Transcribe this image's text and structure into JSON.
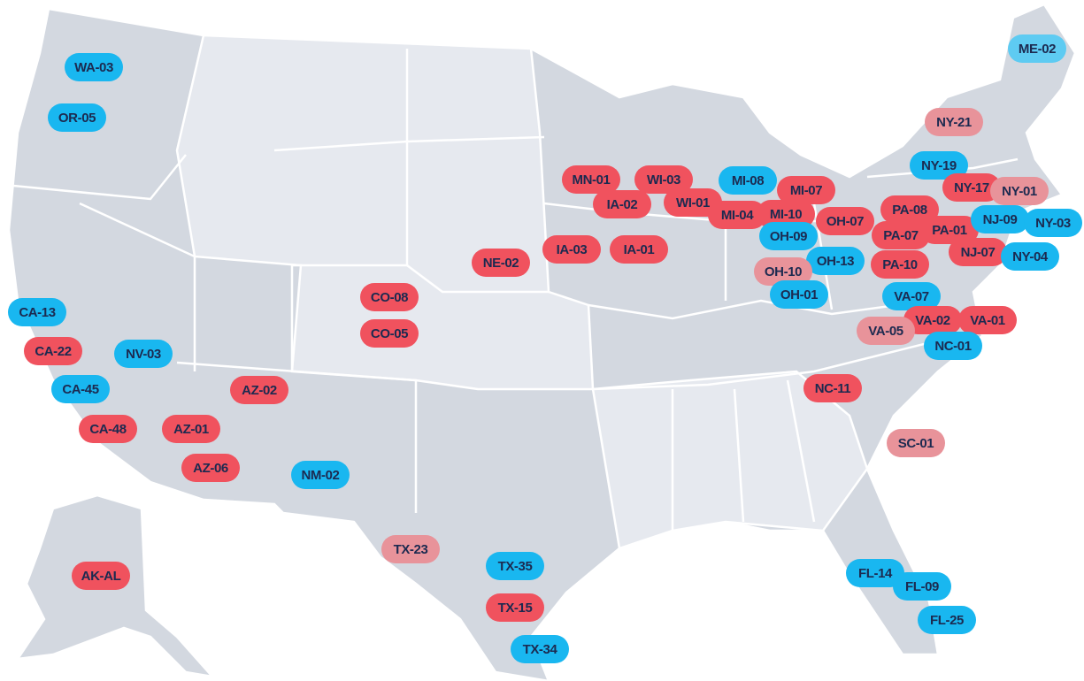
{
  "markers": [
    {
      "label": "WA-03",
      "color": "#19b7f0"
    },
    {
      "label": "OR-05",
      "color": "#19b7f0"
    },
    {
      "label": "ME-02",
      "color": "#5ecbf2"
    },
    {
      "label": "NY-21",
      "color": "#e8939a"
    },
    {
      "label": "NY-19",
      "color": "#19b7f0"
    },
    {
      "label": "NY-17",
      "color": "#f0525e"
    },
    {
      "label": "NY-01",
      "color": "#e8939a"
    },
    {
      "label": "MN-01",
      "color": "#f0525e"
    },
    {
      "label": "WI-03",
      "color": "#f0525e"
    },
    {
      "label": "IA-02",
      "color": "#f0525e"
    },
    {
      "label": "WI-01",
      "color": "#f0525e"
    },
    {
      "label": "MI-08",
      "color": "#19b7f0"
    },
    {
      "label": "MI-07",
      "color": "#f0525e"
    },
    {
      "label": "MI-04",
      "color": "#f0525e"
    },
    {
      "label": "MI-10",
      "color": "#f0525e"
    },
    {
      "label": "OH-07",
      "color": "#f0525e"
    },
    {
      "label": "PA-08",
      "color": "#f0525e"
    },
    {
      "label": "PA-07",
      "color": "#f0525e"
    },
    {
      "label": "PA-01",
      "color": "#f0525e"
    },
    {
      "label": "NJ-09",
      "color": "#19b7f0"
    },
    {
      "label": "NY-03",
      "color": "#19b7f0"
    },
    {
      "label": "OH-09",
      "color": "#19b7f0"
    },
    {
      "label": "IA-03",
      "color": "#f0525e"
    },
    {
      "label": "IA-01",
      "color": "#f0525e"
    },
    {
      "label": "NE-02",
      "color": "#f0525e"
    },
    {
      "label": "OH-13",
      "color": "#19b7f0"
    },
    {
      "label": "NJ-07",
      "color": "#f0525e"
    },
    {
      "label": "NY-04",
      "color": "#19b7f0"
    },
    {
      "label": "PA-10",
      "color": "#f0525e"
    },
    {
      "label": "OH-10",
      "color": "#e8939a"
    },
    {
      "label": "OH-01",
      "color": "#19b7f0"
    },
    {
      "label": "CO-08",
      "color": "#f0525e"
    },
    {
      "label": "VA-07",
      "color": "#19b7f0"
    },
    {
      "label": "CA-13",
      "color": "#19b7f0"
    },
    {
      "label": "VA-02",
      "color": "#f0525e"
    },
    {
      "label": "VA-01",
      "color": "#f0525e"
    },
    {
      "label": "VA-05",
      "color": "#e8939a"
    },
    {
      "label": "CO-05",
      "color": "#f0525e"
    },
    {
      "label": "CA-22",
      "color": "#f0525e"
    },
    {
      "label": "NV-03",
      "color": "#19b7f0"
    },
    {
      "label": "NC-01",
      "color": "#19b7f0"
    },
    {
      "label": "NC-11",
      "color": "#f0525e"
    },
    {
      "label": "AZ-02",
      "color": "#f0525e"
    },
    {
      "label": "CA-45",
      "color": "#19b7f0"
    },
    {
      "label": "CA-48",
      "color": "#f0525e"
    },
    {
      "label": "AZ-01",
      "color": "#f0525e"
    },
    {
      "label": "SC-01",
      "color": "#e8939a"
    },
    {
      "label": "AZ-06",
      "color": "#f0525e"
    },
    {
      "label": "NM-02",
      "color": "#19b7f0"
    },
    {
      "label": "TX-23",
      "color": "#e8939a"
    },
    {
      "label": "TX-35",
      "color": "#19b7f0"
    },
    {
      "label": "FL-14",
      "color": "#19b7f0"
    },
    {
      "label": "AK-AL",
      "color": "#f0525e"
    },
    {
      "label": "FL-09",
      "color": "#19b7f0"
    },
    {
      "label": "TX-15",
      "color": "#f0525e"
    },
    {
      "label": "FL-25",
      "color": "#19b7f0"
    },
    {
      "label": "TX-34",
      "color": "#19b7f0"
    }
  ]
}
